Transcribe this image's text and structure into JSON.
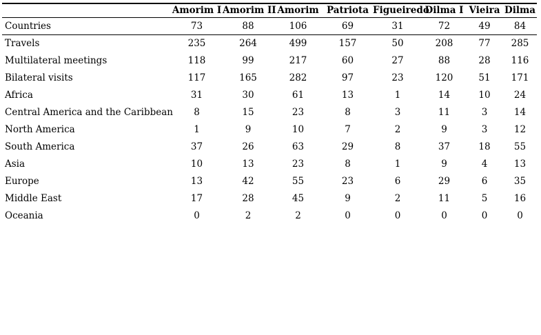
{
  "table": {
    "columns": [
      "Amorim I",
      "Amorim II",
      "Amorim",
      "Patriota",
      "Figueiredo",
      "Dilma I",
      "Vieira",
      "Dilma"
    ],
    "rows": [
      {
        "label": "Countries",
        "values": [
          73,
          88,
          106,
          69,
          31,
          72,
          49,
          84
        ]
      },
      {
        "label": "Travels",
        "values": [
          235,
          264,
          499,
          157,
          50,
          208,
          77,
          285
        ]
      },
      {
        "label": "Multilateral meetings",
        "values": [
          118,
          99,
          217,
          60,
          27,
          88,
          28,
          116
        ]
      },
      {
        "label": "Bilateral visits",
        "values": [
          117,
          165,
          282,
          97,
          23,
          120,
          51,
          171
        ]
      },
      {
        "label": "Africa",
        "values": [
          31,
          30,
          61,
          13,
          1,
          14,
          10,
          24
        ]
      },
      {
        "label": "Central America and the Caribbean",
        "values": [
          8,
          15,
          23,
          8,
          3,
          11,
          3,
          14
        ]
      },
      {
        "label": "North America",
        "values": [
          1,
          9,
          10,
          7,
          2,
          9,
          3,
          12
        ]
      },
      {
        "label": "South America",
        "values": [
          37,
          26,
          63,
          29,
          8,
          37,
          18,
          55
        ]
      },
      {
        "label": "Asia",
        "values": [
          10,
          13,
          23,
          8,
          1,
          9,
          4,
          13
        ]
      },
      {
        "label": "Europe",
        "values": [
          13,
          42,
          55,
          23,
          6,
          29,
          6,
          35
        ]
      },
      {
        "label": "Middle East",
        "values": [
          17,
          28,
          45,
          9,
          2,
          11,
          5,
          16
        ]
      },
      {
        "label": "Oceania",
        "values": [
          0,
          2,
          2,
          0,
          0,
          0,
          0,
          0
        ]
      }
    ],
    "colors": {
      "text": "#000000",
      "rule": "#000000",
      "background": "#ffffff"
    }
  },
  "chart_data": {
    "type": "table",
    "title": "",
    "categories": [
      "Amorim I",
      "Amorim II",
      "Amorim",
      "Patriota",
      "Figueiredo",
      "Dilma I",
      "Vieira",
      "Dilma"
    ],
    "series": [
      {
        "name": "Countries",
        "values": [
          73,
          88,
          106,
          69,
          31,
          72,
          49,
          84
        ]
      },
      {
        "name": "Travels",
        "values": [
          235,
          264,
          499,
          157,
          50,
          208,
          77,
          285
        ]
      },
      {
        "name": "Multilateral meetings",
        "values": [
          118,
          99,
          217,
          60,
          27,
          88,
          28,
          116
        ]
      },
      {
        "name": "Bilateral visits",
        "values": [
          117,
          165,
          282,
          97,
          23,
          120,
          51,
          171
        ]
      },
      {
        "name": "Africa",
        "values": [
          31,
          30,
          61,
          13,
          1,
          14,
          10,
          24
        ]
      },
      {
        "name": "Central America and the Caribbean",
        "values": [
          8,
          15,
          23,
          8,
          3,
          11,
          3,
          14
        ]
      },
      {
        "name": "North America",
        "values": [
          1,
          9,
          10,
          7,
          2,
          9,
          3,
          12
        ]
      },
      {
        "name": "South America",
        "values": [
          37,
          26,
          63,
          29,
          8,
          37,
          18,
          55
        ]
      },
      {
        "name": "Asia",
        "values": [
          10,
          13,
          23,
          8,
          1,
          9,
          4,
          13
        ]
      },
      {
        "name": "Europe",
        "values": [
          13,
          42,
          55,
          23,
          6,
          29,
          6,
          35
        ]
      },
      {
        "name": "Middle East",
        "values": [
          17,
          28,
          45,
          9,
          2,
          11,
          5,
          16
        ]
      },
      {
        "name": "Oceania",
        "values": [
          0,
          2,
          2,
          0,
          0,
          0,
          0,
          0
        ]
      }
    ]
  }
}
